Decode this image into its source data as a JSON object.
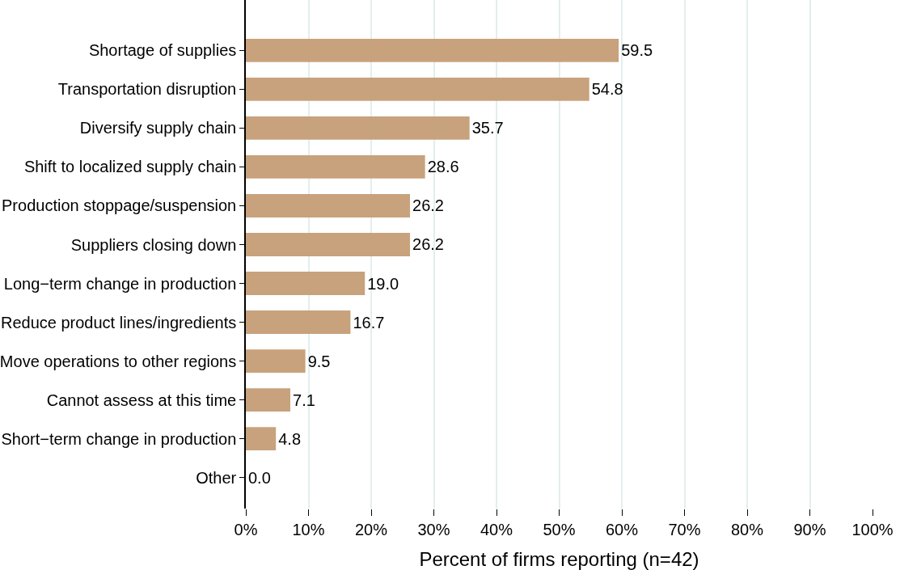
{
  "chart_data": {
    "type": "bar",
    "orientation": "horizontal",
    "xlabel": "Percent of firms reporting (n=42)",
    "categories": [
      "Shortage of supplies",
      "Transportation disruption",
      "Diversify supply chain",
      "Shift to localized supply chain",
      "Production stoppage/suspension",
      "Suppliers closing down",
      "Long−term change in production",
      "Reduce product lines/ingredients",
      "Move operations to other regions",
      "Cannot assess at this time",
      "Short−term change in production",
      "Other"
    ],
    "values": [
      59.5,
      54.8,
      35.7,
      28.6,
      26.2,
      26.2,
      19.0,
      16.7,
      9.5,
      7.1,
      4.8,
      0.0
    ],
    "value_labels": [
      "59.5",
      "54.8",
      "35.7",
      "28.6",
      "26.2",
      "26.2",
      "19.0",
      "16.7",
      "9.5",
      "7.1",
      "4.8",
      "0.0"
    ],
    "color": "#c8a27c",
    "xlim": [
      0,
      100
    ],
    "xticks": [
      {
        "value": 0,
        "label": "0%"
      },
      {
        "value": 10,
        "label": "10%"
      },
      {
        "value": 20,
        "label": "20%"
      },
      {
        "value": 30,
        "label": "30%"
      },
      {
        "value": 40,
        "label": "40%"
      },
      {
        "value": 50,
        "label": "50%"
      },
      {
        "value": 60,
        "label": "60%"
      },
      {
        "value": 70,
        "label": "70%"
      },
      {
        "value": 80,
        "label": "80%"
      },
      {
        "value": 90,
        "label": "90%"
      },
      {
        "value": 100,
        "label": "100%"
      }
    ],
    "grid": "x",
    "legend": false
  }
}
